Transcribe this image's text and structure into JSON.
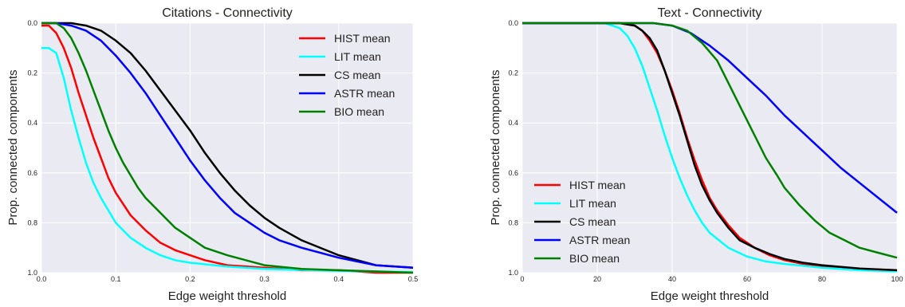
{
  "chart_data": [
    {
      "type": "line",
      "title": "Citations - Connectivity",
      "xlabel": "Edge weight threshold",
      "ylabel": "Prop. connected components",
      "xlim": [
        0.0,
        0.5
      ],
      "ylim": [
        0.0,
        1.0
      ],
      "y_inverted": true,
      "grid": true,
      "legend_position": "top-right",
      "xticks": [
        0.0,
        0.1,
        0.2,
        0.3,
        0.4,
        0.5
      ],
      "xtick_labels": [
        "0.0",
        "0.1",
        "0.2",
        "0.3",
        "0.4",
        "0.5"
      ],
      "yticks": [
        0.0,
        0.2,
        0.4,
        0.6,
        0.8,
        1.0
      ],
      "ytick_labels": [
        "0.0",
        "0.2",
        "0.4",
        "0.6",
        "0.8",
        "1.0"
      ],
      "series": [
        {
          "name": "HIST mean",
          "color": "#ff0000",
          "x": [
            0,
            0.01,
            0.02,
            0.03,
            0.04,
            0.05,
            0.06,
            0.07,
            0.08,
            0.09,
            0.1,
            0.12,
            0.14,
            0.16,
            0.18,
            0.2,
            0.22,
            0.25,
            0.3,
            0.35,
            0.4,
            0.45,
            0.5
          ],
          "y": [
            0.01,
            0.01,
            0.04,
            0.1,
            0.18,
            0.28,
            0.37,
            0.46,
            0.54,
            0.62,
            0.68,
            0.77,
            0.83,
            0.88,
            0.91,
            0.93,
            0.95,
            0.97,
            0.98,
            0.99,
            0.99,
            1.0,
            1.0
          ]
        },
        {
          "name": "LIT mean",
          "color": "#00ffff",
          "x": [
            0,
            0.01,
            0.02,
            0.03,
            0.04,
            0.05,
            0.06,
            0.07,
            0.08,
            0.09,
            0.1,
            0.12,
            0.14,
            0.16,
            0.18,
            0.2,
            0.25,
            0.3,
            0.4,
            0.5
          ],
          "y": [
            0.1,
            0.1,
            0.12,
            0.22,
            0.35,
            0.46,
            0.56,
            0.64,
            0.7,
            0.75,
            0.8,
            0.86,
            0.9,
            0.93,
            0.95,
            0.96,
            0.975,
            0.985,
            0.993,
            0.997
          ]
        },
        {
          "name": "CS mean",
          "color": "#000000",
          "x": [
            0,
            0.02,
            0.04,
            0.06,
            0.08,
            0.1,
            0.12,
            0.14,
            0.16,
            0.18,
            0.2,
            0.22,
            0.24,
            0.26,
            0.28,
            0.3,
            0.32,
            0.35,
            0.4,
            0.45,
            0.5
          ],
          "y": [
            0.0,
            0.0,
            0.0,
            0.01,
            0.03,
            0.07,
            0.12,
            0.19,
            0.27,
            0.35,
            0.43,
            0.52,
            0.6,
            0.67,
            0.73,
            0.78,
            0.82,
            0.87,
            0.93,
            0.97,
            0.98
          ]
        },
        {
          "name": "ASTR mean",
          "color": "#0000ff",
          "x": [
            0,
            0.02,
            0.04,
            0.06,
            0.08,
            0.1,
            0.12,
            0.14,
            0.16,
            0.18,
            0.2,
            0.22,
            0.24,
            0.26,
            0.28,
            0.3,
            0.32,
            0.35,
            0.4,
            0.45,
            0.5
          ],
          "y": [
            0.0,
            0.0,
            0.01,
            0.03,
            0.07,
            0.13,
            0.2,
            0.28,
            0.37,
            0.46,
            0.55,
            0.63,
            0.7,
            0.76,
            0.8,
            0.84,
            0.87,
            0.9,
            0.94,
            0.97,
            0.98
          ]
        },
        {
          "name": "BIO mean",
          "color": "#008000",
          "x": [
            0,
            0.01,
            0.02,
            0.03,
            0.04,
            0.05,
            0.06,
            0.07,
            0.08,
            0.09,
            0.1,
            0.11,
            0.12,
            0.13,
            0.14,
            0.16,
            0.18,
            0.2,
            0.22,
            0.25,
            0.3,
            0.35,
            0.4,
            0.45,
            0.5
          ],
          "y": [
            0.0,
            0.0,
            0.0,
            0.02,
            0.06,
            0.12,
            0.19,
            0.27,
            0.35,
            0.43,
            0.5,
            0.56,
            0.61,
            0.66,
            0.7,
            0.76,
            0.82,
            0.86,
            0.9,
            0.93,
            0.97,
            0.985,
            0.99,
            0.995,
            1.0
          ]
        }
      ]
    },
    {
      "type": "line",
      "title": "Text - Connectivity",
      "xlabel": "Edge weight threshold",
      "ylabel": "Prop. connected components",
      "xlim": [
        0,
        100
      ],
      "ylim": [
        0.0,
        1.0
      ],
      "y_inverted": true,
      "grid": true,
      "legend_position": "bottom-left",
      "xticks": [
        0,
        20,
        40,
        60,
        80,
        100
      ],
      "xtick_labels": [
        "0",
        "20",
        "40",
        "60",
        "80",
        "100"
      ],
      "yticks": [
        0.0,
        0.2,
        0.4,
        0.6,
        0.8,
        1.0
      ],
      "ytick_labels": [
        "0.0",
        "0.2",
        "0.4",
        "0.6",
        "0.8",
        "1.0"
      ],
      "series": [
        {
          "name": "HIST mean",
          "color": "#ff0000",
          "x": [
            0,
            20,
            26,
            30,
            32,
            34,
            36,
            38,
            40,
            42,
            44,
            46,
            48,
            50,
            52,
            55,
            58,
            62,
            66,
            70,
            75,
            80,
            90,
            100
          ],
          "y": [
            0.0,
            0.0,
            0.0,
            0.01,
            0.03,
            0.07,
            0.12,
            0.19,
            0.27,
            0.36,
            0.46,
            0.55,
            0.63,
            0.7,
            0.75,
            0.81,
            0.86,
            0.9,
            0.93,
            0.95,
            0.965,
            0.975,
            0.985,
            0.99
          ]
        },
        {
          "name": "LIT mean",
          "color": "#00ffff",
          "x": [
            0,
            20,
            22,
            24,
            26,
            28,
            30,
            32,
            34,
            36,
            38,
            40,
            42,
            44,
            46,
            48,
            50,
            55,
            60,
            65,
            70,
            80,
            90,
            100
          ],
          "y": [
            0.0,
            0.0,
            0.0,
            0.01,
            0.02,
            0.05,
            0.1,
            0.17,
            0.26,
            0.35,
            0.45,
            0.54,
            0.62,
            0.69,
            0.75,
            0.8,
            0.84,
            0.9,
            0.935,
            0.955,
            0.965,
            0.98,
            0.99,
            0.995
          ]
        },
        {
          "name": "CS mean",
          "color": "#000000",
          "x": [
            0,
            20,
            26,
            30,
            32,
            34,
            36,
            38,
            40,
            42,
            44,
            46,
            48,
            50,
            52,
            55,
            58,
            62,
            66,
            70,
            75,
            80,
            90,
            100
          ],
          "y": [
            0.0,
            0.0,
            0.0,
            0.01,
            0.03,
            0.06,
            0.11,
            0.19,
            0.28,
            0.37,
            0.47,
            0.57,
            0.65,
            0.71,
            0.76,
            0.82,
            0.87,
            0.9,
            0.925,
            0.945,
            0.96,
            0.97,
            0.983,
            0.99
          ]
        },
        {
          "name": "ASTR mean",
          "color": "#0000ff",
          "x": [
            0,
            20,
            30,
            35,
            40,
            45,
            50,
            55,
            60,
            65,
            70,
            75,
            80,
            85,
            90,
            95,
            100
          ],
          "y": [
            0.0,
            0.0,
            0.0,
            0.0,
            0.01,
            0.04,
            0.09,
            0.15,
            0.22,
            0.29,
            0.37,
            0.44,
            0.51,
            0.58,
            0.64,
            0.7,
            0.76
          ]
        },
        {
          "name": "BIO mean",
          "color": "#008000",
          "x": [
            0,
            20,
            30,
            35,
            40,
            44,
            48,
            52,
            55,
            58,
            60,
            62,
            65,
            68,
            70,
            74,
            78,
            82,
            86,
            90,
            95,
            100
          ],
          "y": [
            0.0,
            0.0,
            0.0,
            0.0,
            0.01,
            0.03,
            0.08,
            0.15,
            0.24,
            0.33,
            0.39,
            0.45,
            0.54,
            0.61,
            0.66,
            0.73,
            0.79,
            0.84,
            0.87,
            0.9,
            0.92,
            0.94
          ]
        }
      ]
    }
  ]
}
